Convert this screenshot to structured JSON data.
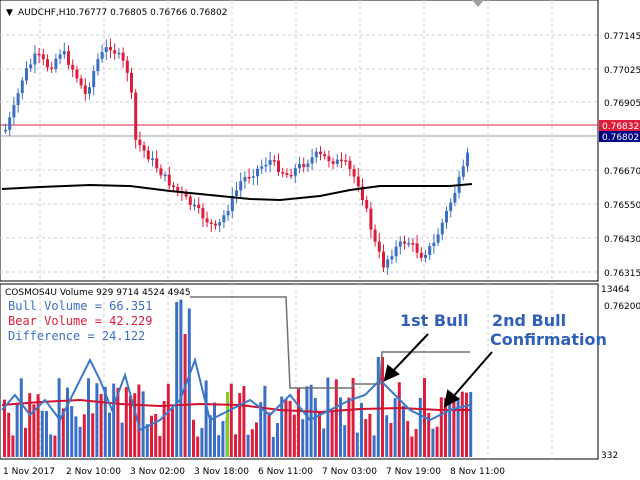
{
  "header": {
    "symbol": "AUDCHF,H1",
    "ohlc": "0.76777 0.76805 0.76766 0.76802"
  },
  "price_axis": {
    "ticks": [
      "0.77145",
      "0.77025",
      "0.76905",
      "0.76670",
      "0.76550",
      "0.76430",
      "0.76315",
      "0.76200"
    ],
    "red_line_label": "0.76832",
    "current_label": "0.76802"
  },
  "indicator": {
    "title": "COSMOS4U Volume 929 9714 4524 4945",
    "bull_volume": "Bull Volume = 66.351",
    "bear_volume": "Bear Volume = 42.229",
    "difference": "Difference = 24.122",
    "axis_top": "13464",
    "axis_bottom": "332"
  },
  "annotations": {
    "first": "1st Bull",
    "second_line1": "2nd Bull",
    "second_line2": "Confirmation"
  },
  "time_axis": [
    "1 Nov 2017",
    "2 Nov 10:00",
    "3 Nov 02:00",
    "3 Nov 18:00",
    "6 Nov 11:00",
    "7 Nov 03:00",
    "7 Nov 19:00",
    "8 Nov 11:00"
  ],
  "colors": {
    "bull": "#3a6fc4",
    "bear": "#dc1e3c",
    "ma": "#000000",
    "volume_line": "#3a78c8",
    "avg_line": "#d01030",
    "step_line": "#707070",
    "annotation": "#2f5fb8"
  }
}
